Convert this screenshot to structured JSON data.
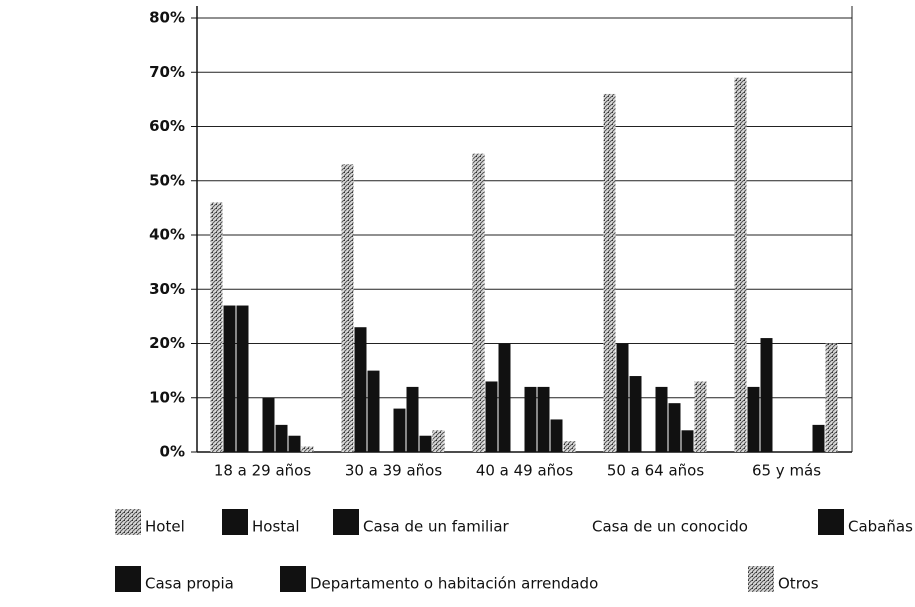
{
  "chart_data": {
    "type": "bar",
    "categories": [
      "18 a 29 años",
      "30 a 39 años",
      "40 a 49 años",
      "50 a 64 años",
      "65 y más"
    ],
    "series": [
      {
        "name": "Hotel",
        "color": "#9a9a9a",
        "hatch": true,
        "values": [
          46,
          53,
          55,
          66,
          69
        ]
      },
      {
        "name": "Hostal",
        "color": "#111111",
        "values": [
          27,
          23,
          13,
          20,
          12
        ]
      },
      {
        "name": "Casa de un familiar",
        "color": "#111111",
        "values": [
          27,
          15,
          20,
          14,
          21
        ]
      },
      {
        "name": "Casa de un conocido",
        "color": "#eeeeee",
        "values": [
          0,
          0,
          0,
          0,
          0
        ]
      },
      {
        "name": "Cabañas",
        "color": "#111111",
        "values": [
          10,
          8,
          12,
          12,
          0
        ]
      },
      {
        "name": "Casa propia",
        "color": "#111111",
        "values": [
          5,
          12,
          12,
          9,
          0
        ]
      },
      {
        "name": "Departamento o habitación arrendado",
        "color": "#111111",
        "values": [
          3,
          3,
          6,
          4,
          5
        ]
      },
      {
        "name": "Otros",
        "color": "#9a9a9a",
        "hatch": true,
        "values": [
          1,
          4,
          2,
          13,
          20
        ]
      }
    ],
    "ylim": [
      0,
      80
    ],
    "yticks": [
      {
        "value": 0,
        "label": "0%"
      },
      {
        "value": 10,
        "label": "10%"
      },
      {
        "value": 20,
        "label": "20%"
      },
      {
        "value": 30,
        "label": "30%"
      },
      {
        "value": 40,
        "label": "40%"
      },
      {
        "value": 50,
        "label": "50%"
      },
      {
        "value": 60,
        "label": "60%"
      },
      {
        "value": 70,
        "label": "70%"
      },
      {
        "value": 80,
        "label": "80%"
      }
    ],
    "grid": true
  }
}
